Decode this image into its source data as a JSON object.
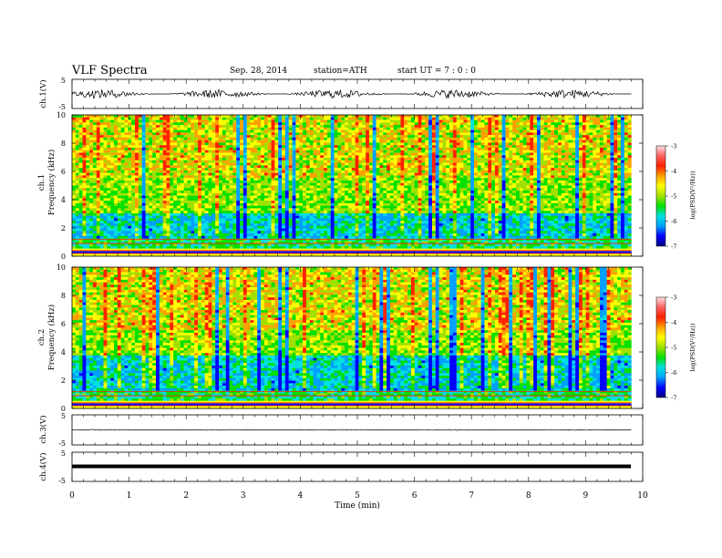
{
  "header": {
    "title": "VLF  Spectra",
    "date": "Sep. 28, 2014",
    "station": "station=ATH",
    "start": "start  UT  =   7  : 0  : 0"
  },
  "colors": {
    "spectrogram_scale": [
      "#000080",
      "#0000ff",
      "#00a0ff",
      "#00e0e0",
      "#00e000",
      "#a0e000",
      "#ffff00",
      "#ffa000",
      "#ff2000",
      "#ff6060",
      "#ffe0e0"
    ],
    "trace": "#000000"
  },
  "chart_data": [
    {
      "type": "line",
      "panel": "ch1-waveform",
      "ylabel": "ch.1(V)",
      "ylim": [
        -5,
        5
      ],
      "yticks": [
        "5",
        "-5"
      ],
      "series": [
        {
          "values_summary": "noisy waveform around 0 V, amplitude approx ±1 V"
        }
      ]
    },
    {
      "type": "heatmap",
      "panel": "ch1-spectrogram",
      "ylabel": "ch.1\nFrequency  (kHz)",
      "ylim": [
        0,
        10
      ],
      "yticks": [
        "0",
        "2",
        "4",
        "6",
        "8",
        "10"
      ],
      "colorbar": {
        "label": "log(PSD(V²/Hz))",
        "range": [
          -7,
          -3
        ],
        "ticks": [
          "-3",
          "-4",
          "-5",
          "-6",
          "-7"
        ]
      }
    },
    {
      "type": "heatmap",
      "panel": "ch2-spectrogram",
      "ylabel": "ch.2\nFrequency  (kHz)",
      "ylim": [
        0,
        10
      ],
      "yticks": [
        "0",
        "2",
        "4",
        "6",
        "8",
        "10"
      ],
      "colorbar": {
        "label": "log(PSD(V²/Hz))",
        "range": [
          -7,
          -3
        ],
        "ticks": [
          "-3",
          "-4",
          "-5",
          "-6",
          "-7"
        ]
      }
    },
    {
      "type": "line",
      "panel": "ch3-waveform",
      "ylabel": "ch.3(V)",
      "ylim": [
        -5,
        5
      ],
      "yticks": [
        "5",
        "-5"
      ],
      "series": [
        {
          "values_summary": "flat trace near 0 V"
        }
      ]
    },
    {
      "type": "line",
      "panel": "ch4-waveform",
      "ylabel": "ch.4(V)",
      "ylim": [
        -5,
        5
      ],
      "yticks": [
        "5",
        "-5"
      ],
      "series": [
        {
          "values_summary": "thick flat trace near 0 V"
        }
      ]
    }
  ],
  "x_axis": {
    "label": "Time  (min)",
    "range": [
      0,
      10
    ],
    "ticks": [
      "0",
      "1",
      "2",
      "3",
      "4",
      "5",
      "6",
      "7",
      "8",
      "9",
      "10"
    ],
    "data_end": 9.8
  }
}
